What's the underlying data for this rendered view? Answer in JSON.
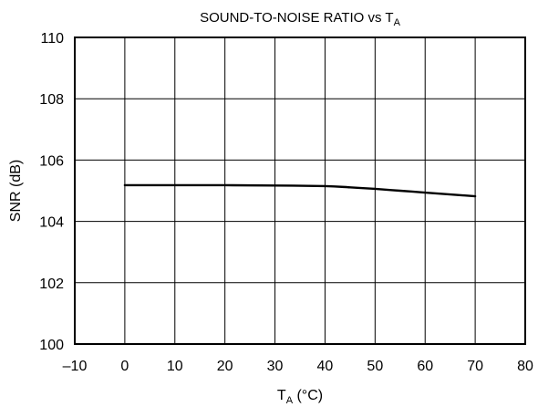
{
  "chart_data": {
    "type": "line",
    "title": {
      "main": "SOUND-TO-NOISE RATIO vs T",
      "sub": "A"
    },
    "xlabel": {
      "main": "T",
      "sub": "A",
      "rest": " (°C)"
    },
    "ylabel": "SNR (dB)",
    "xlim": [
      -10,
      80
    ],
    "ylim": [
      100,
      110
    ],
    "x_ticks": [
      -10,
      0,
      10,
      20,
      30,
      40,
      50,
      60,
      70,
      80
    ],
    "x_tick_labels": [
      "–10",
      "0",
      "10",
      "20",
      "30",
      "40",
      "50",
      "60",
      "70",
      "80"
    ],
    "y_ticks": [
      100,
      102,
      104,
      106,
      108,
      110
    ],
    "y_tick_labels": [
      "100",
      "102",
      "104",
      "106",
      "108",
      "110"
    ],
    "grid": true,
    "series": [
      {
        "x": [
          0,
          10,
          20,
          30,
          40,
          45,
          50,
          55,
          60,
          65,
          70
        ],
        "y": [
          105.18,
          105.18,
          105.18,
          105.17,
          105.15,
          105.11,
          105.06,
          105.0,
          104.94,
          104.88,
          104.82
        ]
      }
    ]
  }
}
